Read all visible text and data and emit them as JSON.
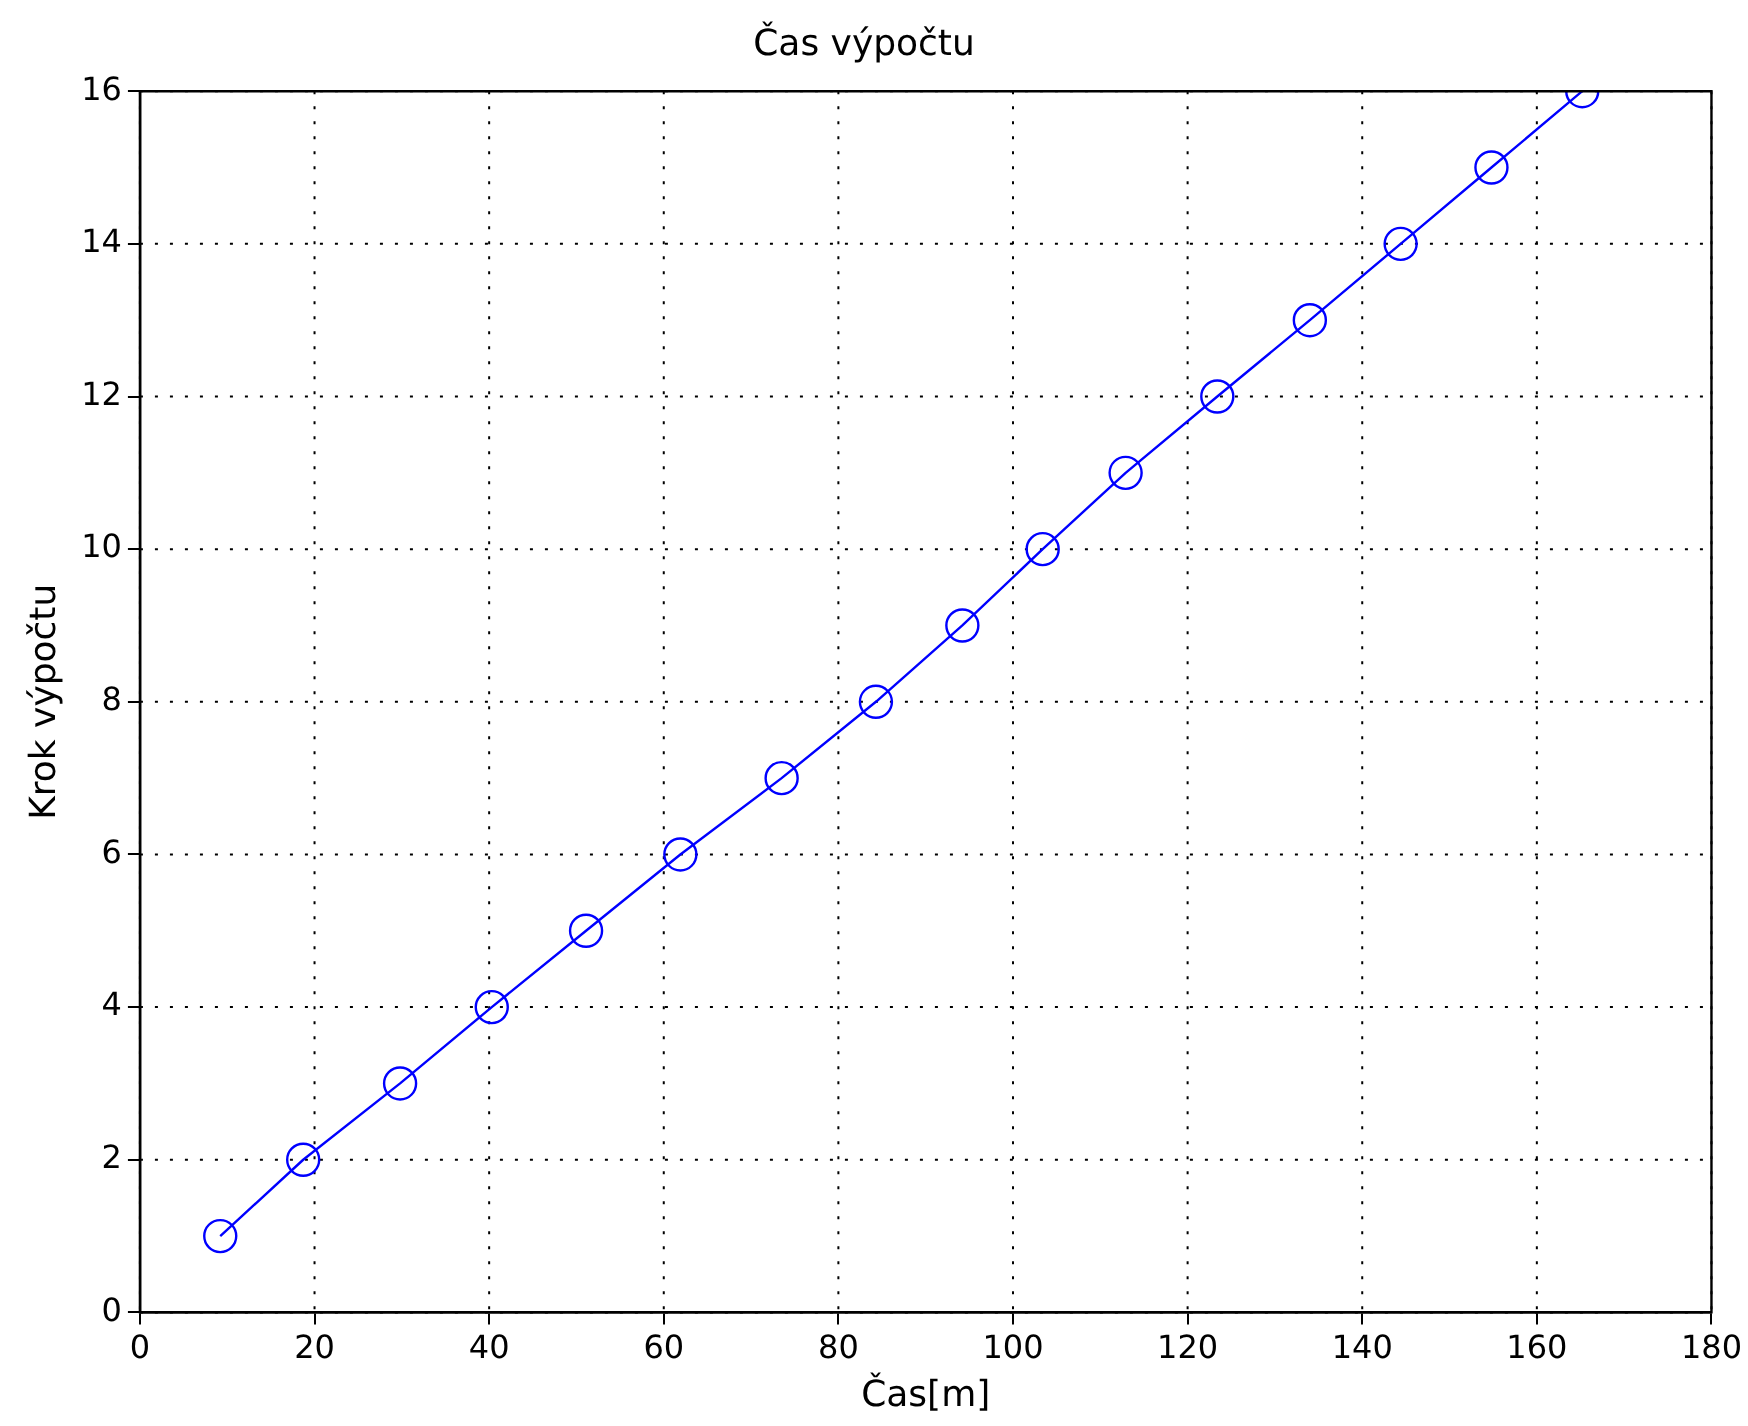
{
  "chart_data": {
    "type": "line",
    "title": "Čas výpočtu",
    "xlabel": "Čas[m]",
    "ylabel": "Krok výpočtu",
    "x": [
      9.2,
      18.7,
      29.8,
      40.3,
      51.1,
      61.9,
      73.5,
      84.3,
      94.2,
      103.4,
      112.9,
      123.4,
      134.0,
      144.4,
      154.8,
      165.2
    ],
    "series": [
      {
        "color": "#0000ff",
        "values": [
          1,
          2,
          3,
          4,
          5,
          6,
          7,
          8,
          9,
          10,
          11,
          12,
          13,
          14,
          15,
          16
        ]
      }
    ],
    "xlim": [
      0,
      180
    ],
    "xticks": [
      0,
      20,
      40,
      60,
      80,
      100,
      120,
      140,
      160,
      180
    ],
    "ylim": [
      0,
      16
    ],
    "yticks": [
      0,
      2,
      4,
      6,
      8,
      10,
      12,
      14,
      16
    ],
    "grid": true,
    "legend": false,
    "marker": "circle",
    "line_style": "solid"
  }
}
